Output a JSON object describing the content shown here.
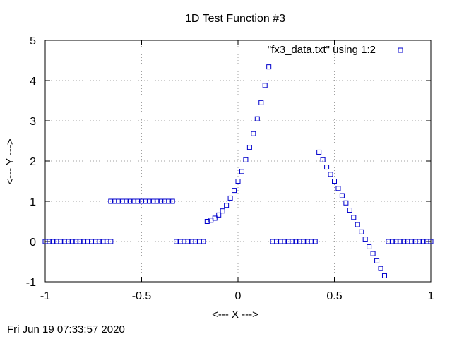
{
  "chart_data": {
    "type": "scatter",
    "title": "1D Test Function #3",
    "xlabel": "<--- X --->",
    "ylabel": "<--- Y --->",
    "xlim": [
      -1,
      1
    ],
    "ylim": [
      -1,
      5
    ],
    "x_ticks": [
      -1,
      -0.5,
      0,
      0.5,
      1
    ],
    "x_tick_labels": [
      "-1",
      "-0.5",
      "0",
      "0.5",
      "1"
    ],
    "y_ticks": [
      -1,
      0,
      1,
      2,
      3,
      4,
      5
    ],
    "y_tick_labels": [
      "-1",
      "0",
      "1",
      "2",
      "3",
      "4",
      "5"
    ],
    "grid": true,
    "legend_position": "top-right",
    "marker": "open-square",
    "marker_color": "#0000cc",
    "series": [
      {
        "name": "\"fx3_data.txt\" using 1:2",
        "points": [
          [
            -1.0,
            0
          ],
          [
            -0.98,
            0
          ],
          [
            -0.96,
            0
          ],
          [
            -0.94,
            0
          ],
          [
            -0.92,
            0
          ],
          [
            -0.9,
            0
          ],
          [
            -0.88,
            0
          ],
          [
            -0.86,
            0
          ],
          [
            -0.84,
            0
          ],
          [
            -0.82,
            0
          ],
          [
            -0.8,
            0
          ],
          [
            -0.78,
            0
          ],
          [
            -0.76,
            0
          ],
          [
            -0.74,
            0
          ],
          [
            -0.72,
            0
          ],
          [
            -0.7,
            0
          ],
          [
            -0.68,
            0
          ],
          [
            -0.66,
            0
          ],
          [
            -0.66,
            1
          ],
          [
            -0.64,
            1
          ],
          [
            -0.62,
            1
          ],
          [
            -0.6,
            1
          ],
          [
            -0.58,
            1
          ],
          [
            -0.56,
            1
          ],
          [
            -0.54,
            1
          ],
          [
            -0.52,
            1
          ],
          [
            -0.5,
            1
          ],
          [
            -0.48,
            1
          ],
          [
            -0.46,
            1
          ],
          [
            -0.44,
            1
          ],
          [
            -0.42,
            1
          ],
          [
            -0.4,
            1
          ],
          [
            -0.38,
            1
          ],
          [
            -0.36,
            1
          ],
          [
            -0.34,
            1
          ],
          [
            -0.32,
            0
          ],
          [
            -0.3,
            0
          ],
          [
            -0.28,
            0
          ],
          [
            -0.26,
            0
          ],
          [
            -0.24,
            0
          ],
          [
            -0.22,
            0
          ],
          [
            -0.2,
            0
          ],
          [
            -0.18,
            0
          ],
          [
            -0.16,
            0.5
          ],
          [
            -0.14,
            0.53
          ],
          [
            -0.12,
            0.58
          ],
          [
            -0.1,
            0.66
          ],
          [
            -0.08,
            0.76
          ],
          [
            -0.06,
            0.9
          ],
          [
            -0.04,
            1.08
          ],
          [
            -0.02,
            1.27
          ],
          [
            0.0,
            1.5
          ],
          [
            0.02,
            1.74
          ],
          [
            0.04,
            2.03
          ],
          [
            0.06,
            2.34
          ],
          [
            0.08,
            2.68
          ],
          [
            0.1,
            3.05
          ],
          [
            0.12,
            3.45
          ],
          [
            0.14,
            3.88
          ],
          [
            0.16,
            4.34
          ],
          [
            0.18,
            0
          ],
          [
            0.2,
            0
          ],
          [
            0.22,
            0
          ],
          [
            0.24,
            0
          ],
          [
            0.26,
            0
          ],
          [
            0.28,
            0
          ],
          [
            0.3,
            0
          ],
          [
            0.32,
            0
          ],
          [
            0.34,
            0
          ],
          [
            0.36,
            0
          ],
          [
            0.38,
            0
          ],
          [
            0.4,
            0
          ],
          [
            0.42,
            2.22
          ],
          [
            0.44,
            2.03
          ],
          [
            0.46,
            1.85
          ],
          [
            0.48,
            1.67
          ],
          [
            0.5,
            1.5
          ],
          [
            0.52,
            1.32
          ],
          [
            0.54,
            1.14
          ],
          [
            0.56,
            0.96
          ],
          [
            0.58,
            0.78
          ],
          [
            0.6,
            0.6
          ],
          [
            0.62,
            0.42
          ],
          [
            0.64,
            0.24
          ],
          [
            0.66,
            0.06
          ],
          [
            0.68,
            -0.13
          ],
          [
            0.7,
            -0.3
          ],
          [
            0.72,
            -0.48
          ],
          [
            0.74,
            -0.67
          ],
          [
            0.76,
            -0.85
          ],
          [
            0.78,
            0
          ],
          [
            0.8,
            0
          ],
          [
            0.82,
            0
          ],
          [
            0.84,
            0
          ],
          [
            0.86,
            0
          ],
          [
            0.88,
            0
          ],
          [
            0.9,
            0
          ],
          [
            0.92,
            0
          ],
          [
            0.94,
            0
          ],
          [
            0.96,
            0
          ],
          [
            0.98,
            0
          ],
          [
            1.0,
            0
          ]
        ]
      }
    ]
  },
  "footer": {
    "timestamp": "Fri Jun 19 07:33:57 2020"
  }
}
